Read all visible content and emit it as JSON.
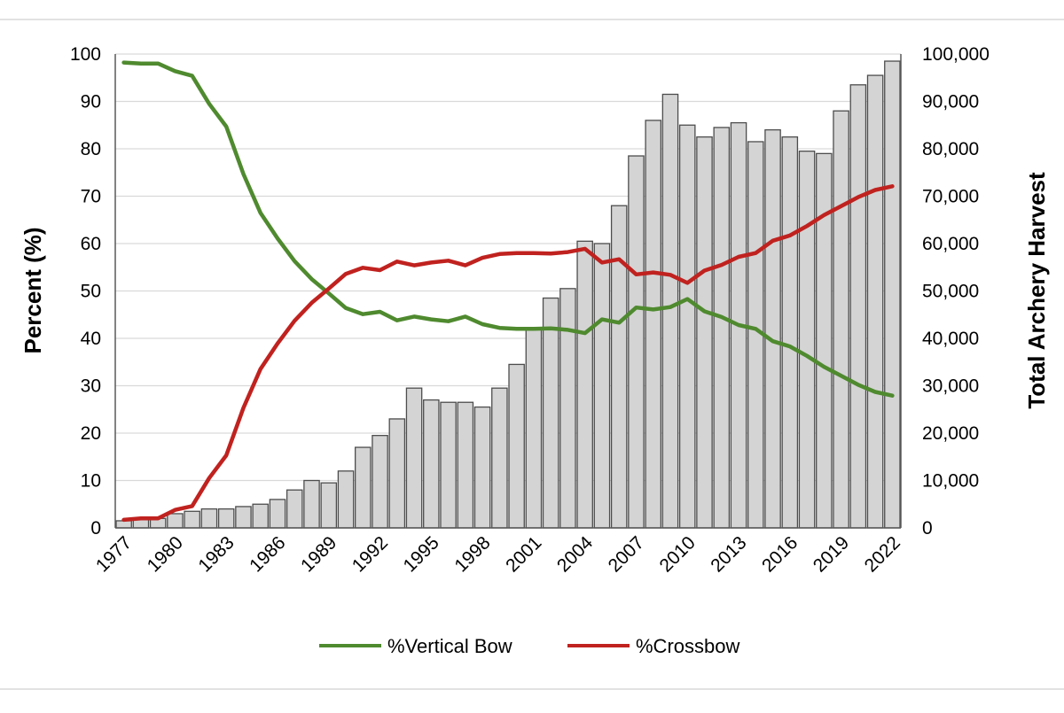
{
  "chart_data": {
    "type": "bar",
    "title": "",
    "ylabel_left": "Percent (%)",
    "ylabel_right": "Total Archery Harvest",
    "ylim_left": [
      0,
      100
    ],
    "ylim_right": [
      0,
      100000
    ],
    "yticks_left": [
      "0",
      "10",
      "20",
      "30",
      "40",
      "50",
      "60",
      "70",
      "80",
      "90",
      "100"
    ],
    "yticks_right": [
      "0",
      "10,000",
      "20,000",
      "30,000",
      "40,000",
      "50,000",
      "60,000",
      "70,000",
      "80,000",
      "90,000",
      "100,000"
    ],
    "xtick_labels": [
      "1977",
      "1980",
      "1983",
      "1986",
      "1989",
      "1992",
      "1995",
      "1998",
      "2001",
      "2004",
      "2007",
      "2010",
      "2013",
      "2016",
      "2019",
      "2022"
    ],
    "grid": "horizontal",
    "legend_position": "bottom",
    "colors": {
      "bar_fill": "#d4d4d4",
      "bar_stroke": "#4d4d4d",
      "vertical_bow": "#4f8a2f",
      "crossbow": "#c0221f",
      "grid": "#d9d9d9"
    },
    "x": [
      1977,
      1978,
      1979,
      1980,
      1981,
      1982,
      1983,
      1984,
      1985,
      1986,
      1987,
      1988,
      1989,
      1990,
      1991,
      1992,
      1993,
      1994,
      1995,
      1996,
      1997,
      1998,
      1999,
      2000,
      2001,
      2002,
      2003,
      2004,
      2005,
      2006,
      2007,
      2008,
      2009,
      2010,
      2011,
      2012,
      2013,
      2014,
      2015,
      2016,
      2017,
      2018,
      2019,
      2020,
      2021,
      2022
    ],
    "harvest": [
      1500,
      2000,
      2000,
      3000,
      3500,
      4000,
      4000,
      4500,
      5000,
      6000,
      8000,
      10000,
      9500,
      12000,
      17000,
      19500,
      23000,
      29500,
      27000,
      26500,
      26500,
      25500,
      29500,
      34500,
      42000,
      48500,
      50500,
      60500,
      60000,
      68000,
      78500,
      86000,
      91500,
      85000,
      82500,
      84500,
      85500,
      81500,
      84000,
      82500,
      79500,
      79000,
      88000,
      93500,
      95500,
      98500
    ],
    "series": [
      {
        "name": "%Vertical Bow",
        "values": [
          98.2,
          98.0,
          98.0,
          96.4,
          95.4,
          89.5,
          84.7,
          74.7,
          66.5,
          61.1,
          56.3,
          52.5,
          49.5,
          46.4,
          45.1,
          45.6,
          43.8,
          44.6,
          44.0,
          43.6,
          44.6,
          43.0,
          42.2,
          42.0,
          42.0,
          42.1,
          41.8,
          41.1,
          44.0,
          43.3,
          46.5,
          46.1,
          46.6,
          48.3,
          45.7,
          44.5,
          42.8,
          42.0,
          39.4,
          38.3,
          36.3,
          34.0,
          32.1,
          30.2,
          28.7,
          27.9
        ]
      },
      {
        "name": "%Crossbow",
        "values": [
          1.7,
          2.0,
          2.0,
          3.8,
          4.6,
          10.5,
          15.3,
          25.3,
          33.5,
          38.9,
          43.7,
          47.5,
          50.5,
          53.6,
          54.9,
          54.4,
          56.2,
          55.4,
          56.0,
          56.4,
          55.4,
          57.0,
          57.8,
          58.0,
          58.0,
          57.9,
          58.2,
          58.9,
          56.0,
          56.7,
          53.5,
          53.9,
          53.4,
          51.7,
          54.3,
          55.5,
          57.2,
          58.0,
          60.6,
          61.7,
          63.7,
          66.0,
          67.9,
          69.8,
          71.3,
          72.1
        ]
      }
    ]
  }
}
